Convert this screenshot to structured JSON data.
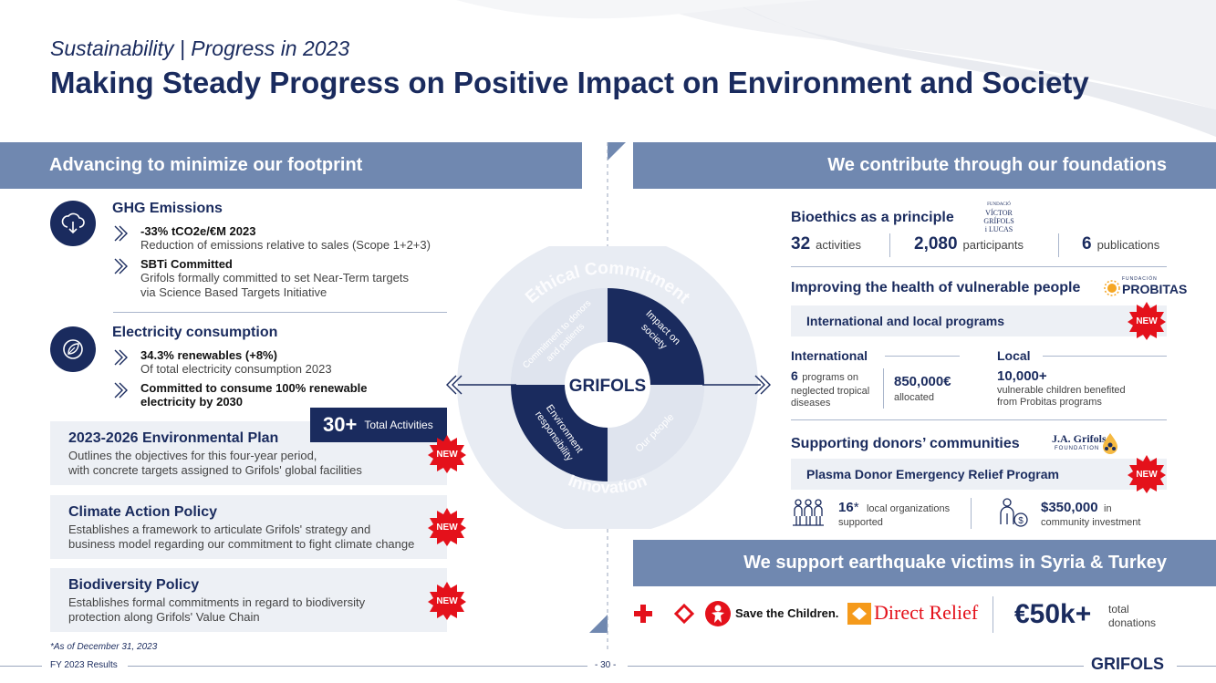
{
  "header": {
    "subtitle": "Sustainability | Progress in 2023",
    "title": "Making Steady Progress on Positive Impact on Environment and Society"
  },
  "left": {
    "band": "Advancing to minimize our footprint",
    "ghg": {
      "title": "GHG Emissions",
      "items": [
        {
          "title": "-33% tCO2e/€M 2023",
          "text1": "Reduction of emissions relative to sales (Scope 1+2+3)",
          "text2": ""
        },
        {
          "title": "SBTi Committed",
          "text1": "Grifols formally committed to set Near-Term targets",
          "text2": "via Science Based Targets Initiative"
        }
      ]
    },
    "electricity": {
      "title": "Electricity consumption",
      "items": [
        {
          "title": "34.3% renewables (+8%)",
          "text1": "Of total electricity consumption 2023"
        },
        {
          "title1": "Committed to consume 100% renewable",
          "title2": "electricity by 2030"
        }
      ]
    },
    "total": {
      "num": "30+",
      "label": "Total Activities"
    },
    "cards": [
      {
        "title": "2023-2026 Environmental Plan",
        "line1": "Outlines the objectives for this four-year period,",
        "line2": "with concrete targets assigned to Grifols' global facilities",
        "badge": "NEW"
      },
      {
        "title": "Climate Action Policy",
        "line1": "Establishes a framework to articulate Grifols' strategy and",
        "line2": "business model regarding our commitment to fight climate change",
        "badge": "NEW"
      },
      {
        "title": "Biodiversity Policy",
        "line1": "Establishes formal commitments in regard to biodiversity",
        "line2": "protection along Grifols' Value Chain",
        "badge": "NEW"
      }
    ],
    "note": "*As of December 31, 2023"
  },
  "center": {
    "outer_top": "Ethical Commitment",
    "outer_bottom": "Innovation",
    "q_tl1": "Commitment to donors",
    "q_tl2": "and patients",
    "q_tr1": "Impact on",
    "q_tr2": "society",
    "q_bl1": "Environment",
    "q_bl2": "responsibility",
    "q_br": "Our people",
    "logo": "GRIFOLS"
  },
  "right": {
    "band": "We contribute through our foundations",
    "bioethics": {
      "title": "Bioethics as a principle",
      "logo_lines": [
        "FUNDACIÓ",
        "VÍCTOR",
        "GRÍFOLS",
        "i LUCAS"
      ],
      "stats": [
        {
          "n": "32",
          "t": "activities"
        },
        {
          "n": "2,080",
          "t": "participants"
        },
        {
          "n": "6",
          "t": "publications"
        }
      ]
    },
    "vulnerable": {
      "title": "Improving the health of vulnerable people",
      "logo_small": "FUNDACIÓN",
      "logo": "PROBITAS",
      "program": "International and local programs",
      "badge": "NEW",
      "international": "International",
      "local": "Local",
      "intl_n": "6",
      "intl_t1": "programs on",
      "intl_t2": "neglected tropical",
      "intl_t3": "diseases",
      "intl_amount": "850,000€",
      "intl_amount_t": "allocated",
      "local_n": "10,000+",
      "local_t1": "vulnerable children benefited",
      "local_t2": "from Probitas programs"
    },
    "donors": {
      "title": "Supporting donors’ communities",
      "logo": "J.A. Grifols",
      "logo_small": "FOUNDATION",
      "program": "Plasma Donor Emergency Relief Program",
      "badge": "NEW",
      "org_n": "16",
      "org_star": "*",
      "org_t1": "local organizations",
      "org_t2": "supported",
      "inv_n": "$350,000",
      "inv_t0": "in",
      "inv_t1": "community investment"
    },
    "quake": {
      "band": "We support earthquake victims in Syria & Turkey",
      "save": "Save the Children.",
      "direct": "Direct Relief",
      "amount": "€50k+",
      "amount_t1": "total",
      "amount_t2": "donations"
    }
  },
  "footer": {
    "left": "FY 2023 Results",
    "page": "- 30 -",
    "logo": "GRIFOLS"
  },
  "colors": {
    "navy": "#1a2b5e",
    "band": "#7088b0",
    "red": "#e4111b"
  }
}
